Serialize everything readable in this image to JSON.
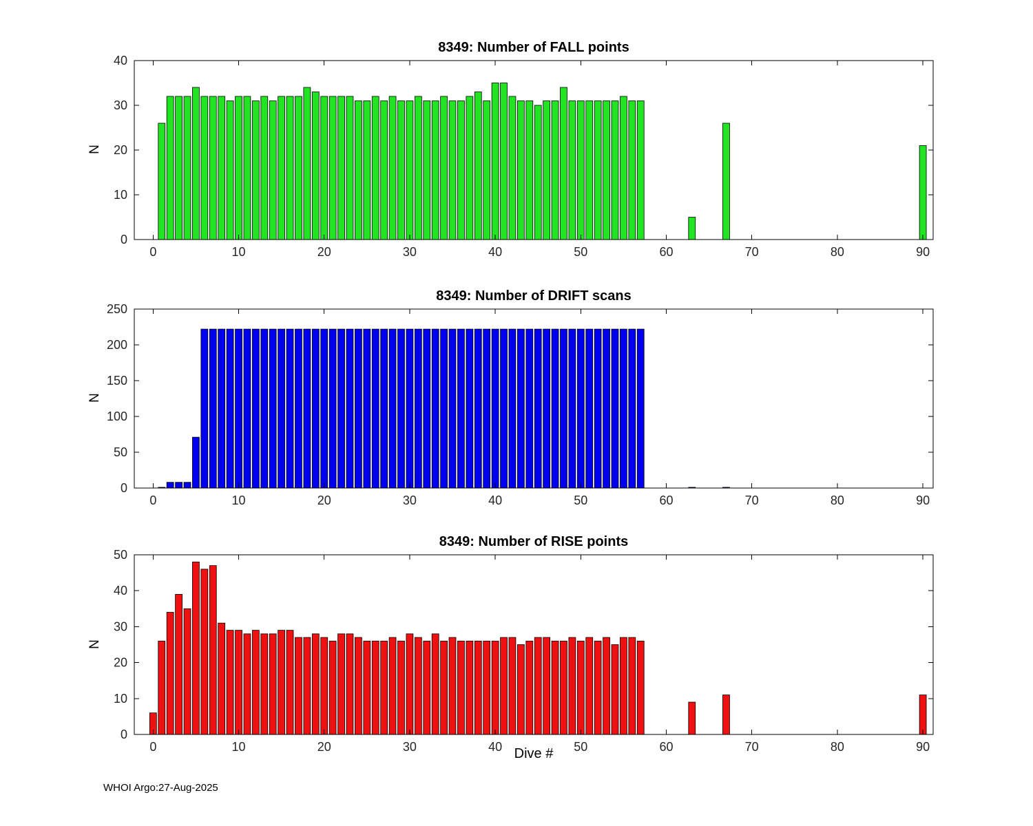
{
  "figure": {
    "footer": "WHOI Argo:27-Aug-2025",
    "xlabel": "Dive #"
  },
  "chart_data": [
    {
      "type": "bar",
      "title": "8349: Number of FALL points",
      "ylabel": "N",
      "bar_color": "#22e422",
      "ylim": [
        0,
        40
      ],
      "yticks": [
        0,
        10,
        20,
        30,
        40
      ],
      "xlim": [
        -2.2,
        91.2
      ],
      "xticks": [
        0,
        10,
        20,
        30,
        40,
        50,
        60,
        70,
        80,
        90
      ],
      "x": [
        1,
        2,
        3,
        4,
        5,
        6,
        7,
        8,
        9,
        10,
        11,
        12,
        13,
        14,
        15,
        16,
        17,
        18,
        19,
        20,
        21,
        22,
        23,
        24,
        25,
        26,
        27,
        28,
        29,
        30,
        31,
        32,
        33,
        34,
        35,
        36,
        37,
        38,
        39,
        40,
        41,
        42,
        43,
        44,
        45,
        46,
        47,
        48,
        49,
        50,
        51,
        52,
        53,
        54,
        55,
        56,
        57,
        63,
        67,
        90
      ],
      "values": [
        26,
        32,
        32,
        32,
        34,
        32,
        32,
        32,
        31,
        32,
        32,
        31,
        32,
        31,
        32,
        32,
        32,
        34,
        33,
        32,
        32,
        32,
        32,
        31,
        31,
        32,
        31,
        32,
        31,
        31,
        32,
        31,
        31,
        32,
        31,
        31,
        32,
        33,
        31,
        35,
        35,
        32,
        31,
        31,
        30,
        31,
        31,
        34,
        31,
        31,
        31,
        31,
        31,
        31,
        32,
        31,
        31,
        5,
        26,
        21
      ]
    },
    {
      "type": "bar",
      "title": "8349: Number of DRIFT scans",
      "ylabel": "N",
      "bar_color": "#0000ee",
      "ylim": [
        0,
        250
      ],
      "yticks": [
        0,
        50,
        100,
        150,
        200,
        250
      ],
      "xlim": [
        -2.2,
        91.2
      ],
      "xticks": [
        0,
        10,
        20,
        30,
        40,
        50,
        60,
        70,
        80,
        90
      ],
      "x": [
        1,
        2,
        3,
        4,
        5,
        6,
        7,
        8,
        9,
        10,
        11,
        12,
        13,
        14,
        15,
        16,
        17,
        18,
        19,
        20,
        21,
        22,
        23,
        24,
        25,
        26,
        27,
        28,
        29,
        30,
        31,
        32,
        33,
        34,
        35,
        36,
        37,
        38,
        39,
        40,
        41,
        42,
        43,
        44,
        45,
        46,
        47,
        48,
        49,
        50,
        51,
        52,
        53,
        54,
        55,
        56,
        57,
        63,
        67
      ],
      "values": [
        1,
        8,
        8,
        8,
        71,
        222,
        222,
        222,
        222,
        222,
        222,
        222,
        222,
        222,
        222,
        222,
        222,
        222,
        222,
        222,
        222,
        222,
        222,
        222,
        222,
        222,
        222,
        222,
        222,
        222,
        222,
        222,
        222,
        222,
        222,
        222,
        222,
        222,
        222,
        222,
        222,
        222,
        222,
        222,
        222,
        222,
        222,
        222,
        222,
        222,
        222,
        222,
        222,
        222,
        222,
        222,
        222,
        1,
        1
      ]
    },
    {
      "type": "bar",
      "title": "8349: Number of RISE points",
      "ylabel": "N",
      "bar_color": "#ee1111",
      "ylim": [
        0,
        50
      ],
      "yticks": [
        0,
        10,
        20,
        30,
        40,
        50
      ],
      "xlim": [
        -2.2,
        91.2
      ],
      "xticks": [
        0,
        10,
        20,
        30,
        40,
        50,
        60,
        70,
        80,
        90
      ],
      "x": [
        0,
        1,
        2,
        3,
        4,
        5,
        6,
        7,
        8,
        9,
        10,
        11,
        12,
        13,
        14,
        15,
        16,
        17,
        18,
        19,
        20,
        21,
        22,
        23,
        24,
        25,
        26,
        27,
        28,
        29,
        30,
        31,
        32,
        33,
        34,
        35,
        36,
        37,
        38,
        39,
        40,
        41,
        42,
        43,
        44,
        45,
        46,
        47,
        48,
        49,
        50,
        51,
        52,
        53,
        54,
        55,
        56,
        57,
        63,
        67,
        90
      ],
      "values": [
        6,
        26,
        34,
        39,
        35,
        48,
        46,
        47,
        31,
        29,
        29,
        28,
        29,
        28,
        28,
        29,
        29,
        27,
        27,
        28,
        27,
        26,
        28,
        28,
        27,
        26,
        26,
        26,
        27,
        26,
        28,
        27,
        26,
        28,
        26,
        27,
        26,
        26,
        26,
        26,
        26,
        27,
        27,
        25,
        26,
        27,
        27,
        26,
        26,
        27,
        26,
        27,
        26,
        27,
        25,
        27,
        27,
        26,
        9,
        11,
        11
      ]
    }
  ]
}
